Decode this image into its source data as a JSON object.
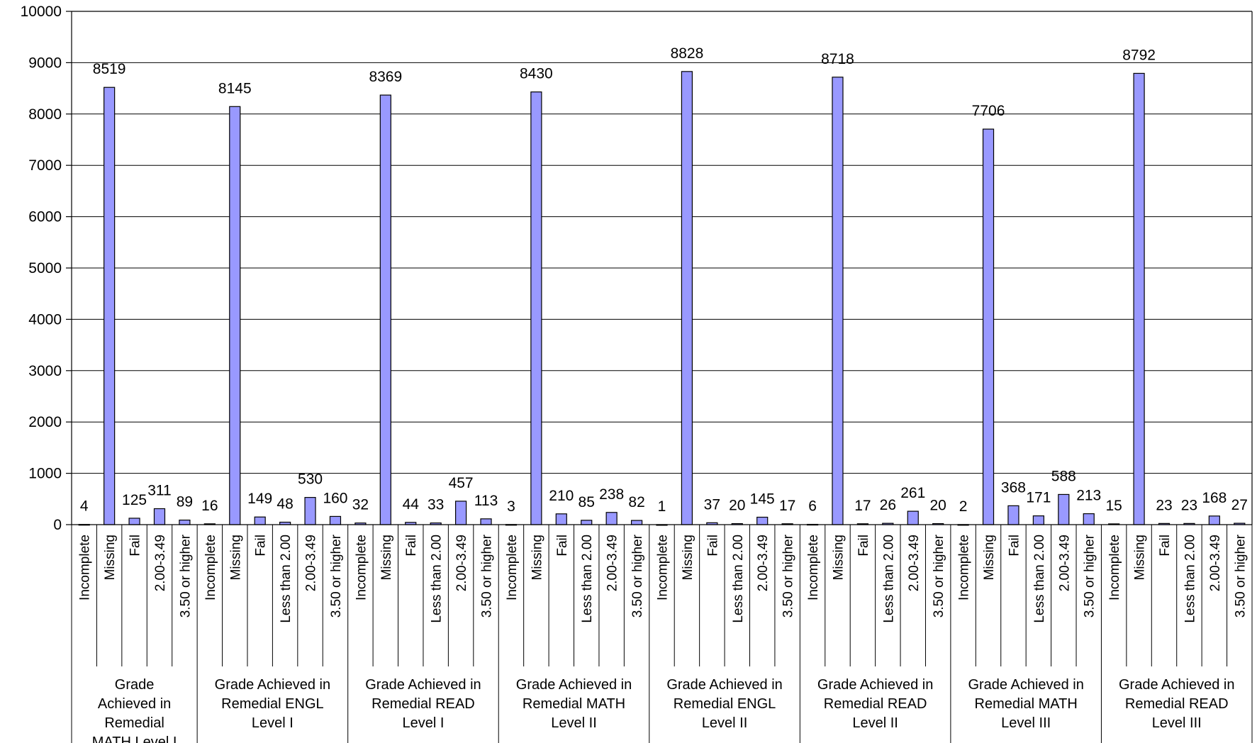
{
  "chart_data": {
    "type": "bar",
    "ylim": [
      0,
      10000
    ],
    "yticks": [
      "0",
      "1000",
      "2000",
      "3000",
      "4000",
      "5000",
      "6000",
      "7000",
      "8000",
      "9000",
      "10000"
    ],
    "grid": true,
    "bar_color": "#9999ff",
    "groups": [
      {
        "label_lines": [
          "Grade",
          "Achieved in",
          "Remedial",
          "MATH Level I"
        ],
        "categories": [
          "Incomplete",
          "Missing",
          "Fail",
          "2.00-3.49",
          "3.50 or higher"
        ],
        "values": [
          4,
          8519,
          125,
          311,
          89
        ],
        "labels": [
          "4",
          "8519",
          "125",
          "311",
          "89"
        ]
      },
      {
        "label_lines": [
          "Grade Achieved in",
          "Remedial ENGL",
          "Level I"
        ],
        "categories": [
          "Incomplete",
          "Missing",
          "Fail",
          "Less than 2.00",
          "2.00-3.49",
          "3.50 or higher"
        ],
        "values": [
          16,
          8145,
          149,
          48,
          530,
          160
        ],
        "labels": [
          "16",
          "8145",
          "149",
          "48",
          "530",
          "160"
        ]
      },
      {
        "label_lines": [
          "Grade Achieved in",
          "Remedial READ",
          "Level I"
        ],
        "categories": [
          "Incomplete",
          "Missing",
          "Fail",
          "Less than 2.00",
          "2.00-3.49",
          "3.50 or higher"
        ],
        "values": [
          32,
          8369,
          44,
          33,
          457,
          113
        ],
        "labels": [
          "32",
          "8369",
          "44",
          "33",
          "457",
          "113"
        ]
      },
      {
        "label_lines": [
          "Grade Achieved in",
          "Remedial MATH",
          "Level II"
        ],
        "categories": [
          "Incomplete",
          "Missing",
          "Fail",
          "Less than 2.00",
          "2.00-3.49",
          "3.50 or higher"
        ],
        "values": [
          3,
          8430,
          210,
          85,
          238,
          82
        ],
        "labels": [
          "3",
          "8430",
          "210",
          "85",
          "238",
          "82"
        ]
      },
      {
        "label_lines": [
          "Grade Achieved in",
          "Remedial ENGL",
          "Level II"
        ],
        "categories": [
          "Incomplete",
          "Missing",
          "Fail",
          "Less than 2.00",
          "2.00-3.49",
          "3.50 or higher"
        ],
        "values": [
          1,
          8828,
          37,
          20,
          145,
          17
        ],
        "labels": [
          "1",
          "8828",
          "37",
          "20",
          "145",
          "17"
        ]
      },
      {
        "label_lines": [
          "Grade Achieved in",
          "Remedial READ",
          "Level II"
        ],
        "categories": [
          "Incomplete",
          "Missing",
          "Fail",
          "Less than 2.00",
          "2.00-3.49",
          "3.50 or higher"
        ],
        "values": [
          6,
          8718,
          17,
          26,
          261,
          20
        ],
        "labels": [
          "6",
          "8718",
          "17",
          "26",
          "261",
          "20"
        ]
      },
      {
        "label_lines": [
          "Grade Achieved in",
          "Remedial MATH",
          "Level III"
        ],
        "categories": [
          "Incomplete",
          "Missing",
          "Fail",
          "Less than 2.00",
          "2.00-3.49",
          "3.50 or higher"
        ],
        "values": [
          2,
          7706,
          368,
          171,
          588,
          213
        ],
        "labels": [
          "2",
          "7706",
          "368",
          "171",
          "588",
          "213"
        ]
      },
      {
        "label_lines": [
          "Grade Achieved in",
          "Remedial READ",
          "Level III"
        ],
        "categories": [
          "Incomplete",
          "Missing",
          "Fail",
          "Less than 2.00",
          "2.00-3.49",
          "3.50 or higher"
        ],
        "values": [
          15,
          8792,
          23,
          23,
          168,
          27
        ],
        "labels": [
          "15",
          "8792",
          "23",
          "23",
          "168",
          "27"
        ]
      }
    ]
  }
}
